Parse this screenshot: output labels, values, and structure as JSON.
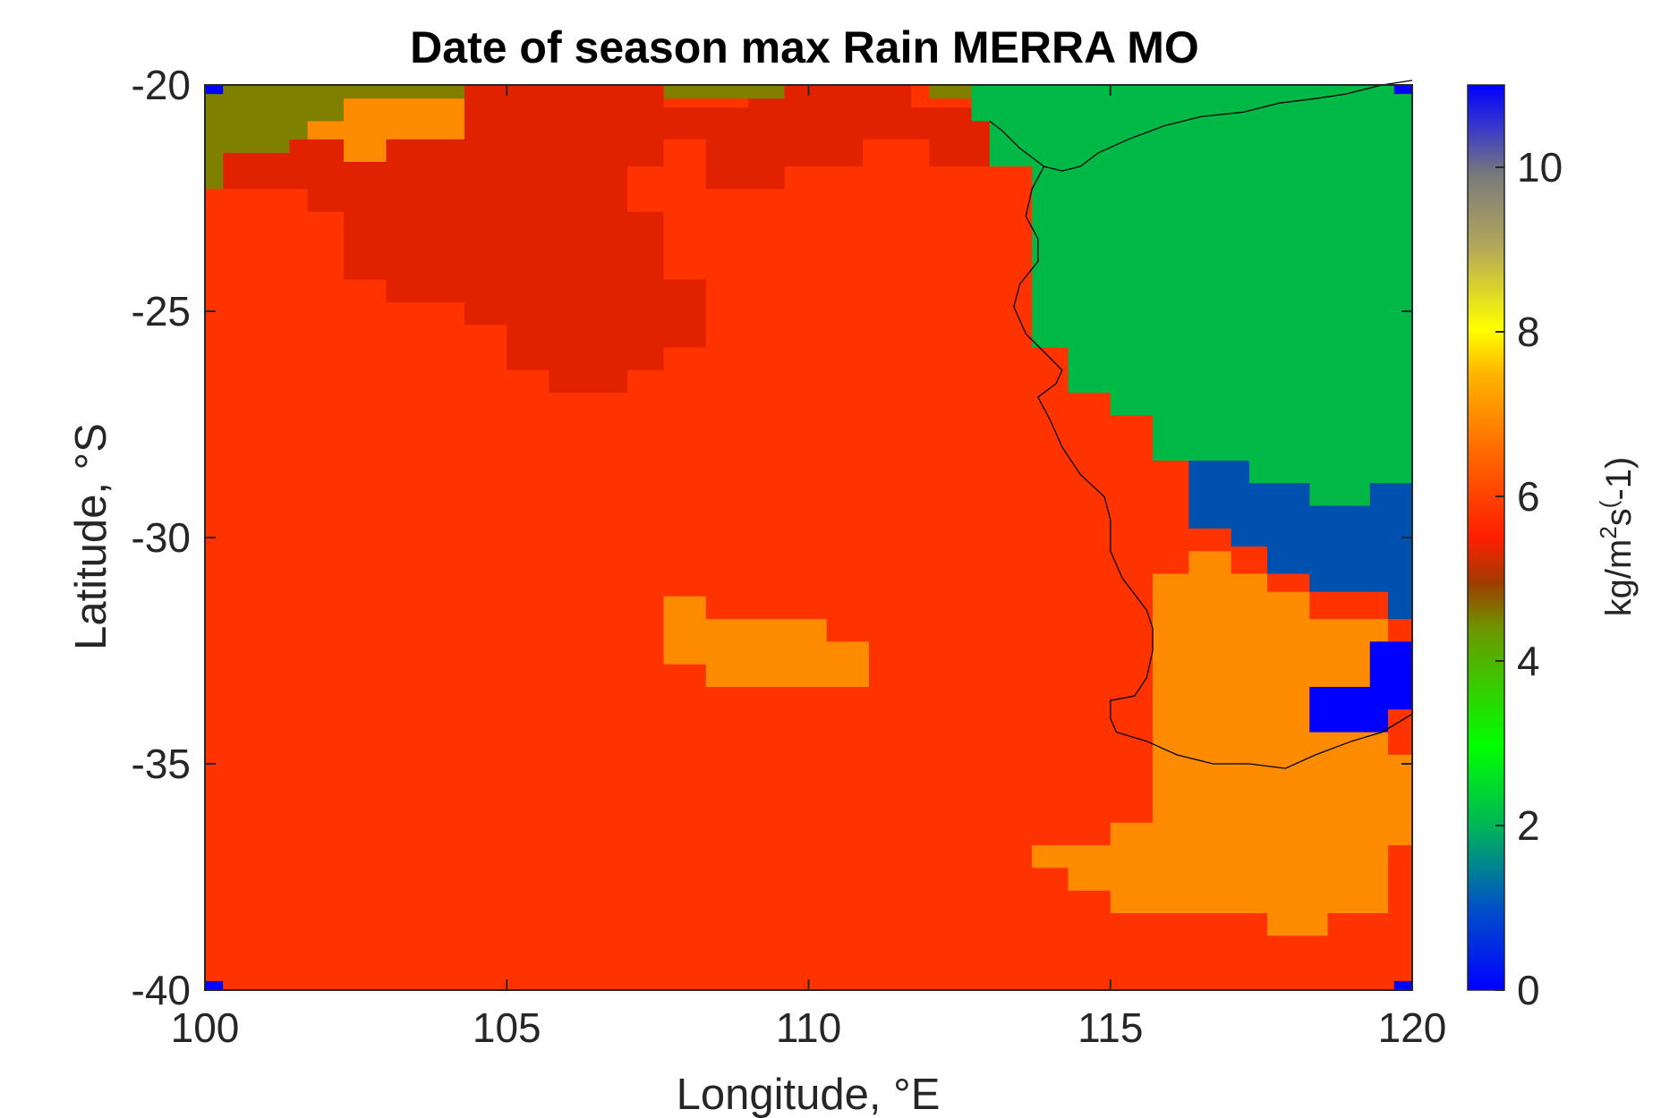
{
  "title": "Date of season max Rain MERRA MO",
  "xlabel": "Longitude, °E",
  "ylabel": "Latitude, °S",
  "colorbar": {
    "label_pre": "kg/m",
    "label_sup1": "2",
    "label_mid": "s",
    "label_sup2": "(",
    "label_post": "-1)",
    "range": [
      0,
      11
    ],
    "tick_values": [
      0,
      2,
      4,
      6,
      8,
      10
    ],
    "tick_labels": [
      "0",
      "2",
      "4",
      "6",
      "8",
      "10"
    ],
    "stops": [
      [
        0.0,
        "#0000ff"
      ],
      [
        0.09,
        "#0050c8"
      ],
      [
        0.18,
        "#00b45a"
      ],
      [
        0.27,
        "#00ff00"
      ],
      [
        0.34,
        "#3cc800"
      ],
      [
        0.4,
        "#6e9600"
      ],
      [
        0.45,
        "#a03c00"
      ],
      [
        0.5,
        "#ff1e00"
      ],
      [
        0.6,
        "#ff6e00"
      ],
      [
        0.68,
        "#ffb400"
      ],
      [
        0.73,
        "#ffff00"
      ],
      [
        0.82,
        "#b4a85a"
      ],
      [
        0.9,
        "#7a7a7a"
      ],
      [
        0.95,
        "#3c3cc8"
      ],
      [
        1.0,
        "#0000ff"
      ]
    ]
  },
  "map": {
    "xlim": [
      100,
      120
    ],
    "ylim": [
      -40,
      -20
    ],
    "xticks": [
      100,
      105,
      110,
      115,
      120
    ],
    "xtick_labels": [
      "100",
      "105",
      "110",
      "115",
      "120"
    ],
    "yticks": [
      -20,
      -25,
      -30,
      -35,
      -40
    ],
    "ytick_labels": [
      "-20",
      "-25",
      "-30",
      "-35",
      "-40"
    ],
    "background_value": 6,
    "background_color": "#ff3300",
    "regions": [
      {
        "name": "dark-red-north",
        "value": 5.5,
        "color": "#e02200",
        "polygon": [
          [
            100.3,
            -21.5
          ],
          [
            101.4,
            -21.5
          ],
          [
            101.4,
            -21.2
          ],
          [
            102.3,
            -21.2
          ],
          [
            102.3,
            -20.5
          ],
          [
            113,
            -20.5
          ],
          [
            113,
            -21.8
          ],
          [
            112,
            -21.8
          ],
          [
            112,
            -21.2
          ],
          [
            110.9,
            -21.2
          ],
          [
            110.9,
            -21.8
          ],
          [
            109.6,
            -21.8
          ],
          [
            109.6,
            -22.3
          ],
          [
            108.3,
            -22.3
          ],
          [
            108.3,
            -21.2
          ],
          [
            107.6,
            -21.2
          ],
          [
            107.6,
            -21.8
          ],
          [
            107,
            -21.8
          ],
          [
            107,
            -22.8
          ],
          [
            107.6,
            -22.8
          ],
          [
            107.6,
            -24.3
          ],
          [
            108.3,
            -24.3
          ],
          [
            108.3,
            -25.8
          ],
          [
            107.6,
            -25.8
          ],
          [
            107.6,
            -26.3
          ],
          [
            107,
            -26.3
          ],
          [
            107,
            -26.8
          ],
          [
            105.7,
            -26.8
          ],
          [
            105.7,
            -26.3
          ],
          [
            105,
            -26.3
          ],
          [
            105,
            -25.3
          ],
          [
            104.3,
            -25.3
          ],
          [
            104.3,
            -24.8
          ],
          [
            103,
            -24.8
          ],
          [
            103,
            -24.3
          ],
          [
            102.3,
            -24.3
          ],
          [
            102.3,
            -22.8
          ],
          [
            101.7,
            -22.8
          ],
          [
            101.7,
            -22.3
          ],
          [
            100.3,
            -22.3
          ]
        ]
      },
      {
        "name": "dark-red-strip-top",
        "value": 5.5,
        "color": "#e02200",
        "polygon": [
          [
            104.3,
            -20
          ],
          [
            107.6,
            -20
          ],
          [
            107.6,
            -20.5
          ],
          [
            104.3,
            -20.5
          ]
        ]
      },
      {
        "name": "dark-red-strip-top2",
        "value": 5.5,
        "color": "#e02200",
        "polygon": [
          [
            109,
            -20
          ],
          [
            111.7,
            -20
          ],
          [
            111.7,
            -20.5
          ],
          [
            109,
            -20.5
          ]
        ]
      },
      {
        "name": "olive-nw",
        "value": 4.2,
        "color": "#808000",
        "polygon": [
          [
            100,
            -20
          ],
          [
            104.3,
            -20
          ],
          [
            104.3,
            -20.8
          ],
          [
            102.3,
            -20.8
          ],
          [
            102.3,
            -21.2
          ],
          [
            101.4,
            -21.2
          ],
          [
            101.4,
            -21.5
          ],
          [
            100.3,
            -21.5
          ],
          [
            100.3,
            -22.3
          ],
          [
            100,
            -22.3
          ]
        ]
      },
      {
        "name": "olive-top-mid",
        "value": 4.2,
        "color": "#808000",
        "polygon": [
          [
            107.6,
            -20
          ],
          [
            109.6,
            -20
          ],
          [
            109.6,
            -20.3
          ],
          [
            107.6,
            -20.3
          ]
        ]
      },
      {
        "name": "olive-top-east",
        "value": 4.2,
        "color": "#808000",
        "polygon": [
          [
            112,
            -20
          ],
          [
            112.7,
            -20
          ],
          [
            112.7,
            -20.8
          ],
          [
            113,
            -20.8
          ],
          [
            113,
            -20.3
          ],
          [
            112,
            -20.3
          ]
        ]
      },
      {
        "name": "orange-nw",
        "value": 7,
        "color": "#ff8c00",
        "polygon": [
          [
            102.3,
            -20.3
          ],
          [
            104.3,
            -20.3
          ],
          [
            104.3,
            -21.2
          ],
          [
            103,
            -21.2
          ],
          [
            103,
            -21.7
          ],
          [
            102.3,
            -21.7
          ],
          [
            102.3,
            -21.2
          ],
          [
            101.7,
            -21.2
          ],
          [
            101.7,
            -20.8
          ],
          [
            102.3,
            -20.8
          ]
        ]
      },
      {
        "name": "green-land",
        "value": 2,
        "color": "#00b845",
        "polygon": [
          [
            112.7,
            -20
          ],
          [
            120,
            -20
          ],
          [
            120,
            -28.8
          ],
          [
            119.3,
            -28.8
          ],
          [
            119.3,
            -29.3
          ],
          [
            118.3,
            -29.3
          ],
          [
            118.3,
            -28.8
          ],
          [
            117.3,
            -28.8
          ],
          [
            117.3,
            -28.3
          ],
          [
            115.7,
            -28.3
          ],
          [
            115.7,
            -27.3
          ],
          [
            115,
            -27.3
          ],
          [
            115,
            -26.8
          ],
          [
            114.3,
            -26.8
          ],
          [
            114.3,
            -25.8
          ],
          [
            113.7,
            -25.8
          ],
          [
            113.7,
            -21.8
          ],
          [
            113,
            -21.8
          ],
          [
            113,
            -20.8
          ],
          [
            112.7,
            -20.8
          ]
        ]
      },
      {
        "name": "blue-east",
        "value": 0.8,
        "color": "#0050b0",
        "polygon": [
          [
            116.3,
            -28.3
          ],
          [
            117.3,
            -28.3
          ],
          [
            117.3,
            -28.8
          ],
          [
            118.3,
            -28.8
          ],
          [
            118.3,
            -29.3
          ],
          [
            119.3,
            -29.3
          ],
          [
            119.3,
            -28.8
          ],
          [
            120,
            -28.8
          ],
          [
            120,
            -31.8
          ],
          [
            119.6,
            -31.8
          ],
          [
            119.6,
            -31.2
          ],
          [
            118.3,
            -31.2
          ],
          [
            118.3,
            -30.8
          ],
          [
            117.6,
            -30.8
          ],
          [
            117.6,
            -30.2
          ],
          [
            117,
            -30.2
          ],
          [
            117,
            -29.8
          ],
          [
            116.3,
            -29.8
          ]
        ]
      },
      {
        "name": "orange-se",
        "value": 7,
        "color": "#ff8c00",
        "polygon": [
          [
            115.7,
            -30.8
          ],
          [
            116.3,
            -30.8
          ],
          [
            116.3,
            -30.3
          ],
          [
            117,
            -30.3
          ],
          [
            117,
            -30.8
          ],
          [
            117.6,
            -30.8
          ],
          [
            117.6,
            -31.2
          ],
          [
            118.3,
            -31.2
          ],
          [
            118.3,
            -31.8
          ],
          [
            119.6,
            -31.8
          ],
          [
            119.6,
            -32.3
          ],
          [
            119.3,
            -32.3
          ],
          [
            119.3,
            -33.3
          ],
          [
            118.3,
            -33.3
          ],
          [
            118.3,
            -34.3
          ],
          [
            119.6,
            -34.3
          ],
          [
            119.6,
            -34.8
          ],
          [
            120,
            -34.8
          ],
          [
            120,
            -36.8
          ],
          [
            119.6,
            -36.8
          ],
          [
            119.6,
            -38.3
          ],
          [
            118.6,
            -38.3
          ],
          [
            118.6,
            -38.8
          ],
          [
            117.6,
            -38.8
          ],
          [
            117.6,
            -38.3
          ],
          [
            115,
            -38.3
          ],
          [
            115,
            -37.8
          ],
          [
            114.3,
            -37.8
          ],
          [
            114.3,
            -37.3
          ],
          [
            113.7,
            -37.3
          ],
          [
            113.7,
            -36.8
          ],
          [
            115,
            -36.8
          ],
          [
            115,
            -36.3
          ],
          [
            115.7,
            -36.3
          ]
        ]
      },
      {
        "name": "bright-blue-se",
        "value": 0,
        "color": "#0000ff",
        "polygon": [
          [
            119.3,
            -32.3
          ],
          [
            120,
            -32.3
          ],
          [
            120,
            -33.8
          ],
          [
            119.6,
            -33.8
          ],
          [
            119.6,
            -34.3
          ],
          [
            118.3,
            -34.3
          ],
          [
            118.3,
            -33.3
          ],
          [
            119.3,
            -33.3
          ]
        ]
      },
      {
        "name": "orange-mid",
        "value": 7,
        "color": "#ff8c00",
        "polygon": [
          [
            107.6,
            -31.3
          ],
          [
            108.3,
            -31.3
          ],
          [
            108.3,
            -31.8
          ],
          [
            110.3,
            -31.8
          ],
          [
            110.3,
            -32.3
          ],
          [
            111,
            -32.3
          ],
          [
            111,
            -33.3
          ],
          [
            108.3,
            -33.3
          ],
          [
            108.3,
            -32.8
          ],
          [
            107.6,
            -32.8
          ]
        ]
      },
      {
        "name": "corner-nw",
        "value": 0,
        "color": "#0000ff",
        "polygon": [
          [
            100,
            -20
          ],
          [
            100.3,
            -20
          ],
          [
            100.3,
            -20.2
          ],
          [
            100,
            -20.2
          ]
        ]
      },
      {
        "name": "corner-ne",
        "value": 0,
        "color": "#0000ff",
        "polygon": [
          [
            119.7,
            -20
          ],
          [
            120,
            -20
          ],
          [
            120,
            -20.2
          ],
          [
            119.7,
            -20.2
          ]
        ]
      },
      {
        "name": "corner-sw",
        "value": 0,
        "color": "#0000ff",
        "polygon": [
          [
            100,
            -39.8
          ],
          [
            100.3,
            -39.8
          ],
          [
            100.3,
            -40
          ],
          [
            100,
            -40
          ]
        ]
      },
      {
        "name": "corner-se",
        "value": 0,
        "color": "#0000ff",
        "polygon": [
          [
            119.7,
            -39.8
          ],
          [
            120,
            -39.8
          ],
          [
            120,
            -40
          ],
          [
            119.7,
            -40
          ]
        ]
      }
    ],
    "coastline": [
      [
        [
          113.0,
          -20.8
        ],
        [
          113.2,
          -21.0
        ],
        [
          113.5,
          -21.4
        ],
        [
          113.9,
          -21.8
        ],
        [
          114.2,
          -21.9
        ],
        [
          114.5,
          -21.8
        ],
        [
          114.8,
          -21.5
        ],
        [
          115.3,
          -21.2
        ],
        [
          115.9,
          -20.9
        ],
        [
          116.5,
          -20.7
        ],
        [
          117.2,
          -20.6
        ],
        [
          117.8,
          -20.4
        ],
        [
          118.4,
          -20.3
        ],
        [
          118.9,
          -20.2
        ],
        [
          119.5,
          -20.0
        ],
        [
          120,
          -19.9
        ]
      ],
      [
        [
          113.9,
          -21.8
        ],
        [
          113.7,
          -22.3
        ],
        [
          113.6,
          -22.9
        ],
        [
          113.8,
          -23.4
        ],
        [
          113.8,
          -23.9
        ],
        [
          113.5,
          -24.4
        ],
        [
          113.4,
          -24.9
        ],
        [
          113.6,
          -25.5
        ],
        [
          113.9,
          -25.9
        ],
        [
          114.2,
          -26.3
        ],
        [
          114.1,
          -26.6
        ],
        [
          113.8,
          -26.9
        ],
        [
          114.0,
          -27.4
        ],
        [
          114.2,
          -28.0
        ],
        [
          114.5,
          -28.6
        ],
        [
          114.9,
          -29.1
        ],
        [
          115.0,
          -29.6
        ],
        [
          115.0,
          -30.3
        ],
        [
          115.2,
          -30.9
        ],
        [
          115.6,
          -31.6
        ],
        [
          115.7,
          -32.0
        ],
        [
          115.7,
          -32.5
        ],
        [
          115.6,
          -33.1
        ],
        [
          115.4,
          -33.5
        ],
        [
          115.0,
          -33.6
        ],
        [
          115.0,
          -34.0
        ],
        [
          115.1,
          -34.3
        ],
        [
          115.6,
          -34.5
        ],
        [
          116.1,
          -34.8
        ],
        [
          116.7,
          -35.0
        ],
        [
          117.3,
          -35.0
        ],
        [
          117.9,
          -35.1
        ],
        [
          118.4,
          -34.8
        ],
        [
          119.0,
          -34.5
        ],
        [
          119.5,
          -34.3
        ],
        [
          120,
          -33.9
        ]
      ]
    ]
  }
}
